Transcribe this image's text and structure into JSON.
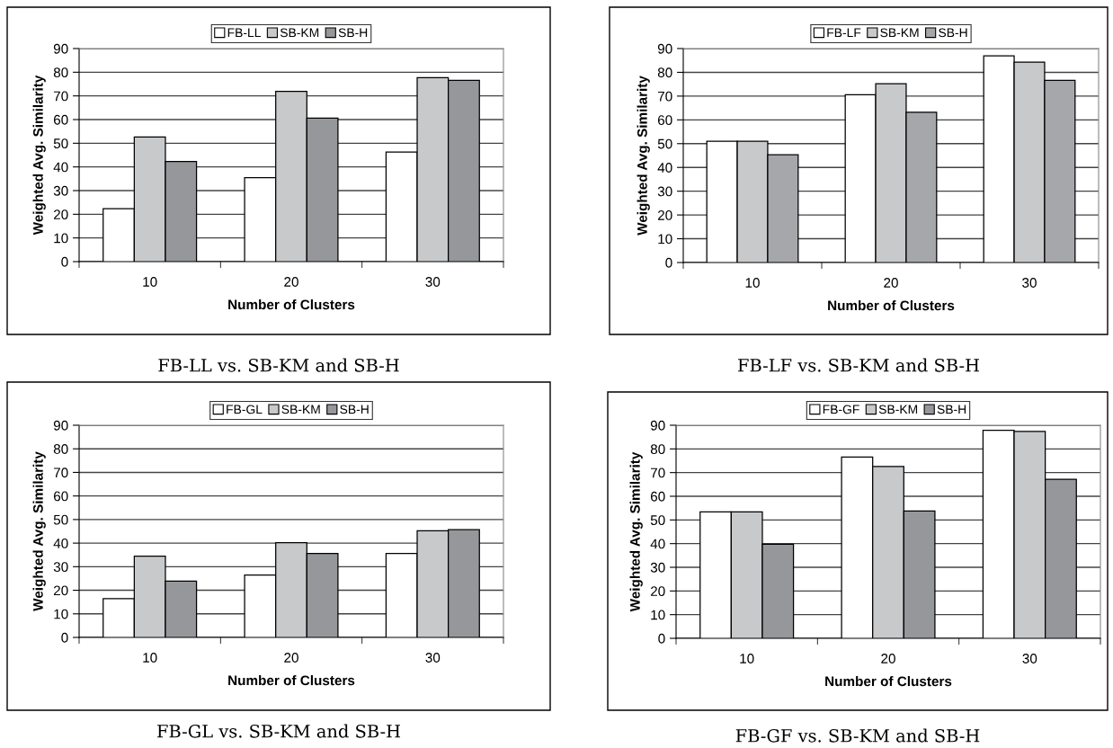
{
  "chart_data": [
    {
      "type": "bar",
      "title": "FB-LL vs. SB-KM and SB-H",
      "xlabel": "Number of Clusters",
      "ylabel": "Weighted Avg. Similarity",
      "categories": [
        "10",
        "20",
        "30"
      ],
      "ylim": [
        0,
        90
      ],
      "yticks": [
        0,
        10,
        20,
        30,
        40,
        50,
        60,
        70,
        80,
        90
      ],
      "grid": "y",
      "legend": "top",
      "series": [
        {
          "name": "FB-LL",
          "color": "#ffffff",
          "values": [
            22.4,
            35.5,
            46.3
          ]
        },
        {
          "name": "SB-KM",
          "color": "#c8c9cb",
          "values": [
            52.6,
            71.9,
            77.7
          ]
        },
        {
          "name": "SB-H",
          "color": "#96979a",
          "values": [
            42.3,
            60.6,
            76.6
          ]
        }
      ]
    },
    {
      "type": "bar",
      "title": "FB-LF vs. SB-KM and SB-H",
      "xlabel": "Number of Clusters",
      "ylabel": "Weighted Avg. Similarity",
      "categories": [
        "10",
        "20",
        "30"
      ],
      "ylim": [
        0,
        90
      ],
      "yticks": [
        0,
        10,
        20,
        30,
        40,
        50,
        60,
        70,
        80,
        90
      ],
      "grid": "y",
      "legend": "top",
      "series": [
        {
          "name": "FB-LF",
          "color": "#ffffff",
          "values": [
            51,
            70.6,
            86.9
          ]
        },
        {
          "name": "SB-KM",
          "color": "#c8c9cb",
          "values": [
            51,
            75.2,
            84.3
          ]
        },
        {
          "name": "SB-H",
          "color": "#a6a7aa",
          "values": [
            45.3,
            63.2,
            76.6
          ]
        }
      ]
    },
    {
      "type": "bar",
      "title": "FB-GL vs. SB-KM and SB-H",
      "xlabel": "Number of Clusters",
      "ylabel": "Weighted Avg. Similarity",
      "categories": [
        "10",
        "20",
        "30"
      ],
      "ylim": [
        0,
        90
      ],
      "yticks": [
        0,
        10,
        20,
        30,
        40,
        50,
        60,
        70,
        80,
        90
      ],
      "grid": "y",
      "legend": "top",
      "series": [
        {
          "name": "FB-GL",
          "color": "#ffffff",
          "values": [
            16.4,
            26.5,
            35.6
          ]
        },
        {
          "name": "SB-KM",
          "color": "#c8c9cb",
          "values": [
            34.5,
            40.2,
            45.2
          ]
        },
        {
          "name": "SB-H",
          "color": "#96979a",
          "values": [
            23.9,
            35.6,
            45.7
          ]
        }
      ]
    },
    {
      "type": "bar",
      "title": "FB-GF vs. SB-KM and SB-H",
      "xlabel": "Number of Clusters",
      "ylabel": "Weighted Avg. Similarity",
      "categories": [
        "10",
        "20",
        "30"
      ],
      "ylim": [
        0,
        90
      ],
      "yticks": [
        0,
        10,
        20,
        30,
        40,
        50,
        60,
        70,
        80,
        90
      ],
      "grid": "y",
      "legend": "top",
      "series": [
        {
          "name": "FB-GF",
          "color": "#ffffff",
          "values": [
            53.4,
            76.6,
            87.9
          ]
        },
        {
          "name": "SB-KM",
          "color": "#c8c9cb",
          "values": [
            53.4,
            72.6,
            87.4
          ]
        },
        {
          "name": "SB-H",
          "color": "#96979a",
          "values": [
            39.7,
            53.8,
            67.2
          ]
        }
      ]
    }
  ]
}
